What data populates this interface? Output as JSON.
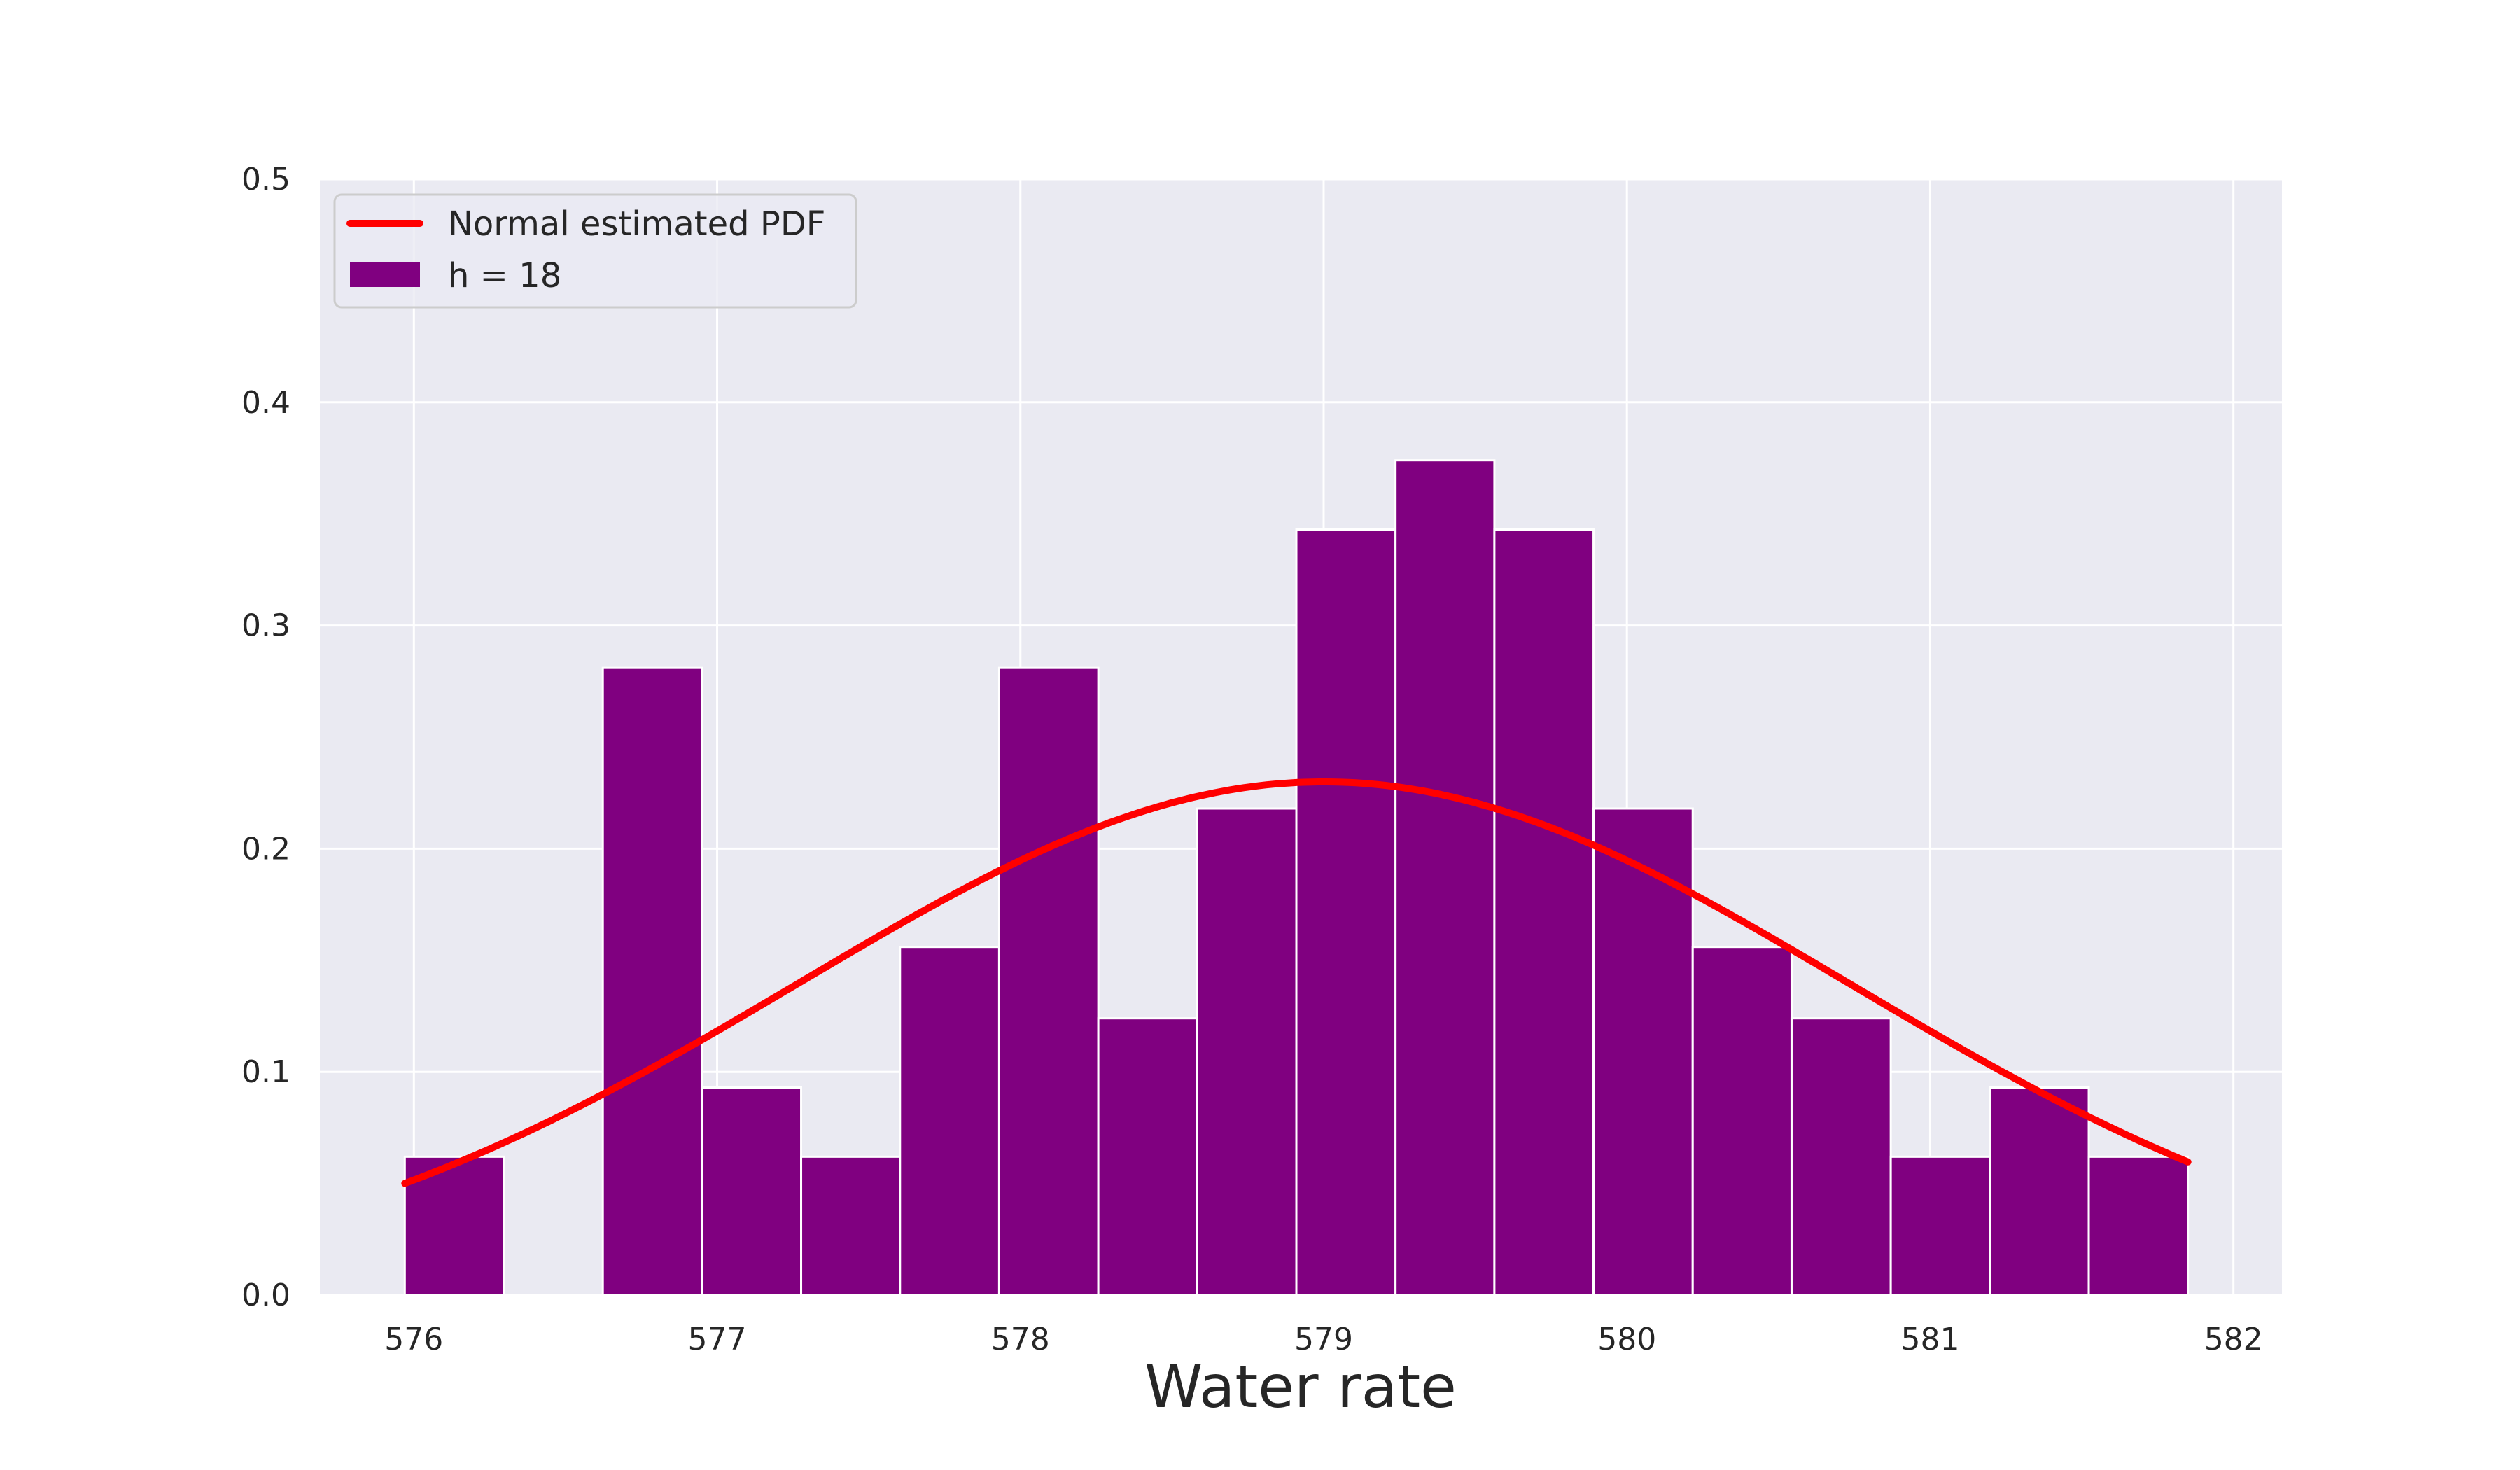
{
  "chart_data": {
    "type": "bar",
    "title": "",
    "xlabel": "Water rate",
    "ylabel": "",
    "xlim": [
      575.69,
      582.16
    ],
    "ylim": [
      0,
      0.5
    ],
    "xticks": [
      "576",
      "577",
      "578",
      "579",
      "580",
      "581",
      "582"
    ],
    "yticks": [
      "0.0",
      "0.1",
      "0.2",
      "0.3",
      "0.4",
      "0.5"
    ],
    "grid": true,
    "legend_position": "upper-left",
    "bin_edges": [
      575.97,
      576.297,
      576.623,
      576.95,
      577.277,
      577.603,
      577.93,
      578.257,
      578.583,
      578.91,
      579.237,
      579.563,
      579.89,
      580.217,
      580.543,
      580.87,
      581.197,
      581.523,
      581.85
    ],
    "series": [
      {
        "name": "h = 18",
        "kind": "histogram",
        "color": "#800080",
        "values": [
          0.062,
          0.0,
          0.281,
          0.093,
          0.062,
          0.156,
          0.281,
          0.124,
          0.218,
          0.343,
          0.374,
          0.343,
          0.218,
          0.156,
          0.124,
          0.062,
          0.093,
          0.062
        ]
      },
      {
        "name": "Normal estimated PDF",
        "kind": "line",
        "color": "#ff0000",
        "mean": 579.0,
        "std": 1.735,
        "x_range": [
          575.97,
          581.85
        ]
      }
    ]
  },
  "colors": {
    "plot_background": "#eaeaf2",
    "grid": "#ffffff",
    "bar_edge": "#ffffff"
  }
}
